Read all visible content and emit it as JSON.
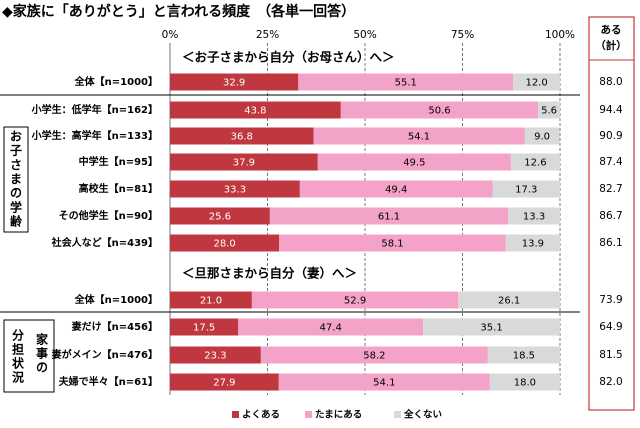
{
  "chart_data": {
    "type": "bar",
    "orientation": "horizontal",
    "stacked": true,
    "percent": true,
    "title": "◆家族に「ありがとう」と言われる頻度　（各単一回答）",
    "xlim": [
      0,
      100
    ],
    "xticks": [
      "0%",
      "25%",
      "50%",
      "75%",
      "100%"
    ],
    "grid": true,
    "legend_position": "bottom",
    "series": [
      {
        "name": "よくある",
        "color": "#c0383f"
      },
      {
        "name": "たまにある",
        "color": "#f4a3c8"
      },
      {
        "name": "全くない",
        "color": "#d9d9d9"
      }
    ],
    "total_header": "ある\n（計）",
    "sections": [
      {
        "label": "＜お子さまから自分（お母さん）へ＞"
      },
      {
        "label": "＜旦那さまから自分（妻）へ＞"
      }
    ],
    "groups": [
      {
        "label": "お子さまの学齢"
      },
      {
        "label": "家事の分担状況"
      }
    ],
    "rows": [
      {
        "label": "全体【n=1000】",
        "values": [
          32.9,
          55.1,
          12.0
        ],
        "total": "88.0"
      },
      {
        "label": "小学生：低学年【n=162】",
        "values": [
          43.8,
          50.6,
          5.6
        ],
        "total": "94.4"
      },
      {
        "label": "小学生：高学年【n=133】",
        "values": [
          36.8,
          54.1,
          9.0
        ],
        "total": "90.9"
      },
      {
        "label": "中学生【n=95】",
        "values": [
          37.9,
          49.5,
          12.6
        ],
        "total": "87.4"
      },
      {
        "label": "高校生【n=81】",
        "values": [
          33.3,
          49.4,
          17.3
        ],
        "total": "82.7"
      },
      {
        "label": "その他学生【n=90】",
        "values": [
          25.6,
          61.1,
          13.3
        ],
        "total": "86.7"
      },
      {
        "label": "社会人など【n=439】",
        "values": [
          28.0,
          58.1,
          13.9
        ],
        "total": "86.1"
      },
      {
        "label": "全体【n=1000】",
        "values": [
          21.0,
          52.9,
          26.1
        ],
        "total": "73.9"
      },
      {
        "label": "妻だけ【n=456】",
        "values": [
          17.5,
          47.4,
          35.1
        ],
        "total": "64.9"
      },
      {
        "label": "妻がメイン【n=476】",
        "values": [
          23.3,
          58.2,
          18.5
        ],
        "total": "81.5"
      },
      {
        "label": "夫婦で半々【n=61】",
        "values": [
          27.9,
          54.1,
          18.0
        ],
        "total": "82.0"
      }
    ]
  }
}
